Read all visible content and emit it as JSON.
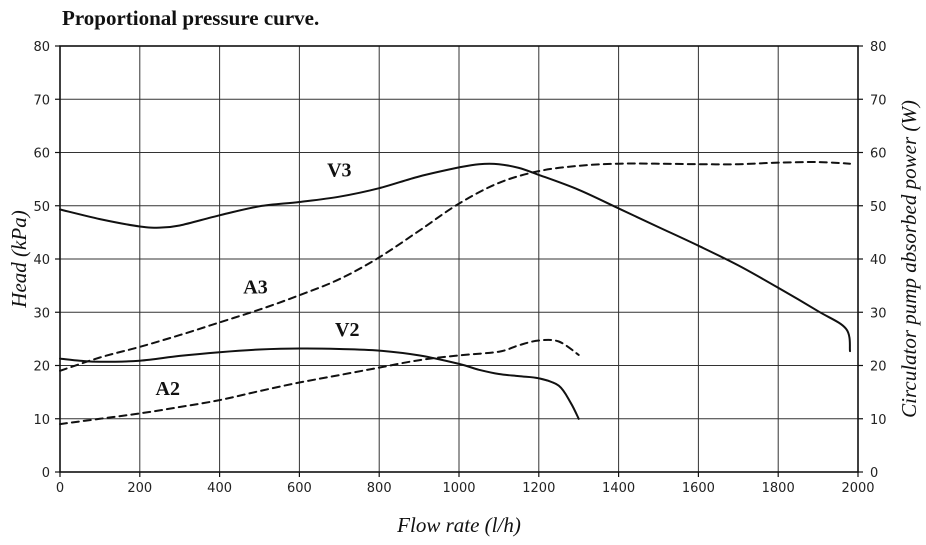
{
  "chart_data": {
    "type": "line",
    "title": "Proportional pressure curve.",
    "xlabel": "Flow rate (l/h)",
    "ylabel": "Head (kPa)",
    "y2label": "Circulator pump absorbed power (W)",
    "xlim": [
      0,
      2000
    ],
    "ylim": [
      0,
      80
    ],
    "y2lim": [
      0,
      80
    ],
    "xticks": [
      "0",
      "200",
      "400",
      "600",
      "800",
      "1000",
      "1200",
      "1400",
      "1600",
      "1800",
      "2000"
    ],
    "yticks": [
      "0",
      "10",
      "20",
      "30",
      "40",
      "50",
      "60",
      "70",
      "80"
    ],
    "y2ticks": [
      "0",
      "10",
      "20",
      "30",
      "40",
      "50",
      "60",
      "70",
      "80"
    ],
    "grid": true,
    "series": [
      {
        "name": "V3",
        "style": "solid",
        "axis": "left",
        "label_at": [
          700,
          55.5
        ],
        "points": [
          [
            0,
            49.3
          ],
          [
            100,
            47.5
          ],
          [
            200,
            46.1
          ],
          [
            250,
            45.9
          ],
          [
            300,
            46.3
          ],
          [
            400,
            48.2
          ],
          [
            500,
            49.9
          ],
          [
            600,
            50.7
          ],
          [
            700,
            51.7
          ],
          [
            800,
            53.3
          ],
          [
            900,
            55.5
          ],
          [
            1000,
            57.2
          ],
          [
            1050,
            57.8
          ],
          [
            1100,
            57.8
          ],
          [
            1150,
            57.1
          ],
          [
            1200,
            55.8
          ],
          [
            1300,
            53
          ],
          [
            1400,
            49.5
          ],
          [
            1500,
            46
          ],
          [
            1600,
            42.5
          ],
          [
            1700,
            38.8
          ],
          [
            1800,
            34.6
          ],
          [
            1900,
            30.2
          ],
          [
            1970,
            26.9
          ],
          [
            1980,
            22.7
          ]
        ]
      },
      {
        "name": "A3",
        "style": "dashed",
        "axis": "right",
        "label_at": [
          490,
          33.5
        ],
        "points": [
          [
            0,
            19
          ],
          [
            100,
            21.5
          ],
          [
            200,
            23.5
          ],
          [
            300,
            25.7
          ],
          [
            400,
            28.1
          ],
          [
            500,
            30.5
          ],
          [
            600,
            33.2
          ],
          [
            700,
            36.2
          ],
          [
            800,
            40.3
          ],
          [
            900,
            45.3
          ],
          [
            1000,
            50.4
          ],
          [
            1100,
            54.3
          ],
          [
            1200,
            56.5
          ],
          [
            1300,
            57.5
          ],
          [
            1400,
            57.9
          ],
          [
            1500,
            57.9
          ],
          [
            1600,
            57.8
          ],
          [
            1700,
            57.8
          ],
          [
            1800,
            58.1
          ],
          [
            1900,
            58.2
          ],
          [
            1980,
            57.9
          ]
        ]
      },
      {
        "name": "V2",
        "style": "solid",
        "axis": "left",
        "label_at": [
          720,
          25.5
        ],
        "points": [
          [
            0,
            21.3
          ],
          [
            50,
            20.9
          ],
          [
            100,
            20.7
          ],
          [
            200,
            20.9
          ],
          [
            300,
            21.8
          ],
          [
            400,
            22.5
          ],
          [
            500,
            23
          ],
          [
            600,
            23.2
          ],
          [
            700,
            23.1
          ],
          [
            800,
            22.8
          ],
          [
            900,
            21.9
          ],
          [
            1000,
            20.3
          ],
          [
            1050,
            19.2
          ],
          [
            1100,
            18.4
          ],
          [
            1150,
            18
          ],
          [
            1200,
            17.6
          ],
          [
            1250,
            16.2
          ],
          [
            1280,
            13
          ],
          [
            1300,
            10
          ]
        ]
      },
      {
        "name": "A2",
        "style": "dashed",
        "axis": "right",
        "label_at": [
          270,
          14.5
        ],
        "points": [
          [
            0,
            9
          ],
          [
            100,
            10
          ],
          [
            200,
            11
          ],
          [
            300,
            12.2
          ],
          [
            400,
            13.5
          ],
          [
            500,
            15.2
          ],
          [
            600,
            16.8
          ],
          [
            700,
            18.2
          ],
          [
            800,
            19.6
          ],
          [
            900,
            21
          ],
          [
            1000,
            21.9
          ],
          [
            1100,
            22.6
          ],
          [
            1150,
            23.8
          ],
          [
            1200,
            24.7
          ],
          [
            1250,
            24.5
          ],
          [
            1300,
            22
          ]
        ]
      }
    ]
  }
}
